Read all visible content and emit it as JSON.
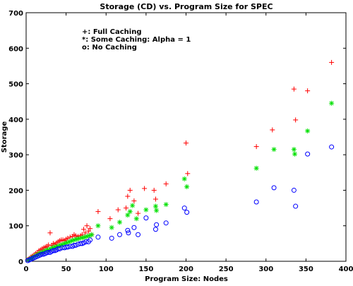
{
  "chart_data": {
    "type": "scatter",
    "title": "Storage (CD) vs. Program Size for SPEC",
    "xlabel": "Program Size: Nodes",
    "ylabel": "Storage",
    "xlim": [
      0,
      400
    ],
    "ylim": [
      0,
      700
    ],
    "xticks": [
      0,
      50,
      100,
      150,
      200,
      250,
      300,
      350,
      400
    ],
    "yticks": [
      0,
      100,
      200,
      300,
      400,
      500,
      600,
      700
    ],
    "grid": false,
    "legend_position": "top-left",
    "series": [
      {
        "name": "Full Caching",
        "legend_text": "+: Full Caching",
        "marker": "plus",
        "color": "#ff0000",
        "points": [
          [
            2,
            5
          ],
          [
            4,
            8
          ],
          [
            6,
            12
          ],
          [
            8,
            15
          ],
          [
            10,
            18
          ],
          [
            12,
            22
          ],
          [
            14,
            25
          ],
          [
            16,
            30
          ],
          [
            18,
            32
          ],
          [
            20,
            35
          ],
          [
            22,
            38
          ],
          [
            24,
            40
          ],
          [
            26,
            42
          ],
          [
            28,
            46
          ],
          [
            30,
            80
          ],
          [
            32,
            45
          ],
          [
            34,
            50
          ],
          [
            36,
            48
          ],
          [
            38,
            52
          ],
          [
            40,
            55
          ],
          [
            42,
            58
          ],
          [
            44,
            60
          ],
          [
            46,
            60
          ],
          [
            48,
            58
          ],
          [
            50,
            62
          ],
          [
            52,
            65
          ],
          [
            55,
            68
          ],
          [
            58,
            70
          ],
          [
            60,
            75
          ],
          [
            62,
            72
          ],
          [
            65,
            70
          ],
          [
            68,
            72
          ],
          [
            70,
            75
          ],
          [
            72,
            90
          ],
          [
            74,
            80
          ],
          [
            76,
            100
          ],
          [
            78,
            85
          ],
          [
            80,
            92
          ],
          [
            82,
            75
          ],
          [
            90,
            140
          ],
          [
            105,
            120
          ],
          [
            115,
            145
          ],
          [
            125,
            150
          ],
          [
            127,
            183
          ],
          [
            130,
            200
          ],
          [
            135,
            170
          ],
          [
            140,
            135
          ],
          [
            148,
            205
          ],
          [
            160,
            200
          ],
          [
            162,
            175
          ],
          [
            175,
            218
          ],
          [
            200,
            333
          ],
          [
            202,
            247
          ],
          [
            288,
            323
          ],
          [
            308,
            370
          ],
          [
            335,
            485
          ],
          [
            337,
            398
          ],
          [
            352,
            480
          ],
          [
            382,
            560
          ]
        ]
      },
      {
        "name": "Some Caching: Alpha = 1",
        "legend_text": "*: Some Caching: Alpha = 1",
        "marker": "star",
        "color": "#00e000",
        "points": [
          [
            3,
            4
          ],
          [
            6,
            8
          ],
          [
            9,
            12
          ],
          [
            12,
            16
          ],
          [
            15,
            20
          ],
          [
            18,
            24
          ],
          [
            21,
            26
          ],
          [
            24,
            30
          ],
          [
            27,
            32
          ],
          [
            30,
            35
          ],
          [
            33,
            38
          ],
          [
            36,
            40
          ],
          [
            39,
            42
          ],
          [
            42,
            45
          ],
          [
            45,
            47
          ],
          [
            48,
            50
          ],
          [
            51,
            52
          ],
          [
            54,
            55
          ],
          [
            57,
            58
          ],
          [
            60,
            60
          ],
          [
            63,
            62
          ],
          [
            66,
            64
          ],
          [
            70,
            66
          ],
          [
            73,
            68
          ],
          [
            76,
            70
          ],
          [
            79,
            72
          ],
          [
            82,
            75
          ],
          [
            90,
            100
          ],
          [
            107,
            95
          ],
          [
            117,
            110
          ],
          [
            127,
            130
          ],
          [
            130,
            140
          ],
          [
            133,
            157
          ],
          [
            138,
            120
          ],
          [
            150,
            145
          ],
          [
            162,
            155
          ],
          [
            163,
            143
          ],
          [
            175,
            160
          ],
          [
            198,
            232
          ],
          [
            201,
            210
          ],
          [
            288,
            262
          ],
          [
            310,
            315
          ],
          [
            335,
            315
          ],
          [
            336,
            302
          ],
          [
            352,
            367
          ],
          [
            382,
            445
          ]
        ]
      },
      {
        "name": "No Caching",
        "legend_text": "o: No Caching",
        "marker": "circle",
        "color": "#0000ff",
        "points": [
          [
            2,
            2
          ],
          [
            4,
            4
          ],
          [
            6,
            6
          ],
          [
            8,
            8
          ],
          [
            10,
            10
          ],
          [
            12,
            12
          ],
          [
            14,
            14
          ],
          [
            16,
            16
          ],
          [
            18,
            18
          ],
          [
            20,
            20
          ],
          [
            22,
            20
          ],
          [
            24,
            22
          ],
          [
            26,
            24
          ],
          [
            28,
            25
          ],
          [
            30,
            25
          ],
          [
            32,
            28
          ],
          [
            34,
            30
          ],
          [
            36,
            30
          ],
          [
            38,
            32
          ],
          [
            40,
            35
          ],
          [
            42,
            35
          ],
          [
            45,
            38
          ],
          [
            48,
            38
          ],
          [
            50,
            40
          ],
          [
            52,
            40
          ],
          [
            55,
            42
          ],
          [
            58,
            42
          ],
          [
            60,
            45
          ],
          [
            62,
            45
          ],
          [
            65,
            48
          ],
          [
            68,
            50
          ],
          [
            70,
            50
          ],
          [
            72,
            52
          ],
          [
            75,
            55
          ],
          [
            78,
            55
          ],
          [
            80,
            60
          ],
          [
            90,
            68
          ],
          [
            107,
            65
          ],
          [
            117,
            75
          ],
          [
            127,
            87
          ],
          [
            128,
            80
          ],
          [
            135,
            95
          ],
          [
            140,
            75
          ],
          [
            150,
            122
          ],
          [
            162,
            90
          ],
          [
            163,
            103
          ],
          [
            175,
            108
          ],
          [
            198,
            150
          ],
          [
            201,
            138
          ],
          [
            288,
            167
          ],
          [
            310,
            207
          ],
          [
            335,
            200
          ],
          [
            337,
            155
          ],
          [
            352,
            302
          ],
          [
            382,
            322
          ]
        ]
      }
    ]
  }
}
